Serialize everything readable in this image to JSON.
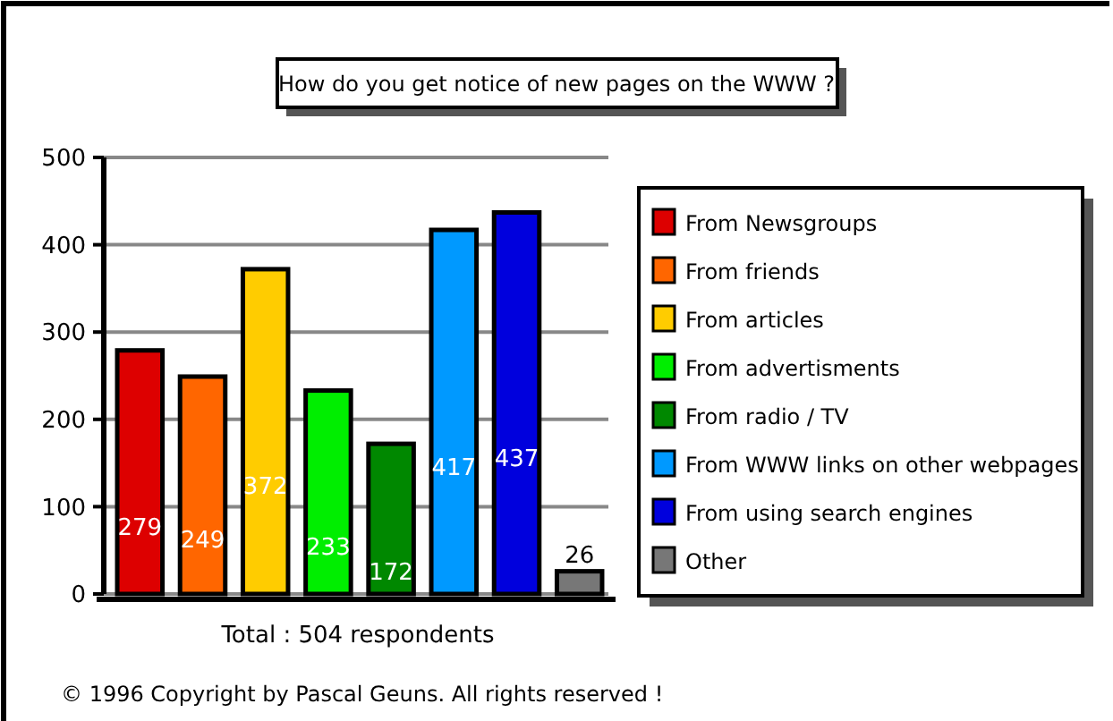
{
  "chart_data": {
    "type": "bar",
    "title": "How do you get notice of new pages on the WWW ?",
    "xlabel": "Total :  504 respondents",
    "categories": [
      null,
      null,
      null,
      null,
      null,
      null,
      null,
      null
    ],
    "series": [
      {
        "name": "From Newsgroups",
        "color": "#dd0000",
        "values": [
          279,
          null,
          null,
          null,
          null,
          null,
          null,
          null
        ]
      },
      {
        "name": "From friends",
        "color": "#ff6600",
        "values": [
          null,
          249,
          null,
          null,
          null,
          null,
          null,
          null
        ]
      },
      {
        "name": "From articles",
        "color": "#ffcc00",
        "values": [
          null,
          null,
          372,
          null,
          null,
          null,
          null,
          null
        ]
      },
      {
        "name": "From advertisments",
        "color": "#00ee00",
        "values": [
          null,
          null,
          null,
          233,
          null,
          null,
          null,
          null
        ]
      },
      {
        "name": "From radio / TV",
        "color": "#008800",
        "values": [
          null,
          null,
          null,
          null,
          172,
          null,
          null,
          null
        ]
      },
      {
        "name": "From WWW links on other webpages",
        "color": "#0099ff",
        "values": [
          null,
          null,
          null,
          null,
          null,
          417,
          null,
          null
        ]
      },
      {
        "name": "From using search engines",
        "color": "#0000dd",
        "values": [
          null,
          null,
          null,
          null,
          null,
          null,
          437,
          null
        ]
      },
      {
        "name": "Other",
        "color": "#777777",
        "values": [
          null,
          null,
          null,
          null,
          null,
          null,
          null,
          26
        ]
      }
    ],
    "ylim": [
      0,
      500
    ],
    "yticks": [
      0,
      100,
      200,
      300,
      400,
      500
    ],
    "grid": "y",
    "legend": "right",
    "tick_labels": "y",
    "data_labels": true,
    "annotations": [
      "© 1996   Copyright by Pascal Geuns.  All rights reserved !"
    ]
  }
}
